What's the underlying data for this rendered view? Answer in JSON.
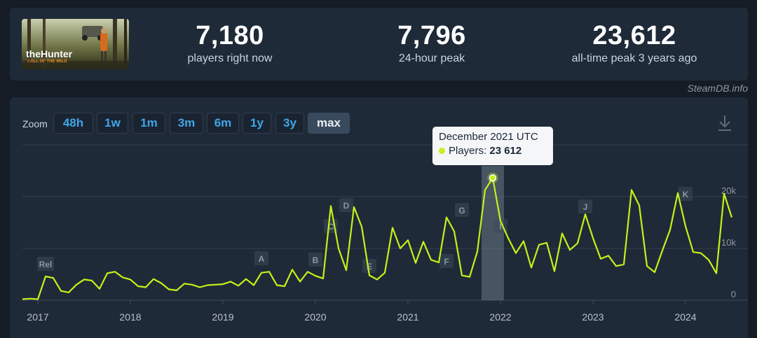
{
  "stats": [
    {
      "value": "7,180",
      "label": "players right now"
    },
    {
      "value": "7,796",
      "label": "24-hour peak"
    },
    {
      "value": "23,612",
      "label": "all-time peak 3 years ago"
    }
  ],
  "game": {
    "logo_line1": "theHunter",
    "logo_line2": "CALL OF THE WILD"
  },
  "credit": "SteamDB.info",
  "zoom": {
    "label": "Zoom",
    "buttons": [
      "48h",
      "1w",
      "1m",
      "3m",
      "6m",
      "1y",
      "3y",
      "max"
    ],
    "active": "max"
  },
  "tooltip": {
    "title": "December 2021 UTC",
    "series_label": "Players:",
    "value": "23 612"
  },
  "colors": {
    "line": "#c6f019",
    "accent": "#3fa6e8",
    "background": "#1f2a38"
  },
  "icons": {
    "download": "download-icon"
  },
  "chart_data": {
    "type": "line",
    "title": "",
    "xlabel": "",
    "ylabel": "",
    "series": [
      {
        "name": "Players",
        "color": "#c6f019"
      }
    ],
    "x_ticks": [
      "2017",
      "2018",
      "2019",
      "2020",
      "2021",
      "2022",
      "2023",
      "2024"
    ],
    "y_ticks": [
      {
        "value": 0,
        "label": "0"
      },
      {
        "value": 10000,
        "label": "10k"
      },
      {
        "value": 20000,
        "label": "20k"
      }
    ],
    "ylim": [
      0,
      30000
    ],
    "grid": true,
    "highlight": {
      "date": "2021-12",
      "value": 23612
    },
    "flags": [
      {
        "label": "Rel",
        "date": "2017-02"
      },
      {
        "label": "A",
        "date": "2019-06"
      },
      {
        "label": "B",
        "date": "2020-01"
      },
      {
        "label": "C",
        "date": "2020-03"
      },
      {
        "label": "D",
        "date": "2020-05"
      },
      {
        "label": "E",
        "date": "2020-08"
      },
      {
        "label": "F",
        "date": "2021-06"
      },
      {
        "label": "G",
        "date": "2021-08"
      },
      {
        "label": "I",
        "date": "2022-01"
      },
      {
        "label": "J",
        "date": "2022-12"
      },
      {
        "label": "K",
        "date": "2024-01"
      }
    ],
    "points": [
      [
        "2016-11",
        200
      ],
      [
        "2016-12",
        300
      ],
      [
        "2017-01",
        200
      ],
      [
        "2017-02",
        4600
      ],
      [
        "2017-03",
        4300
      ],
      [
        "2017-04",
        1800
      ],
      [
        "2017-05",
        1500
      ],
      [
        "2017-06",
        3000
      ],
      [
        "2017-07",
        4000
      ],
      [
        "2017-08",
        3800
      ],
      [
        "2017-09",
        2200
      ],
      [
        "2017-10",
        5200
      ],
      [
        "2017-11",
        5500
      ],
      [
        "2017-12",
        4400
      ],
      [
        "2018-01",
        4000
      ],
      [
        "2018-02",
        2700
      ],
      [
        "2018-03",
        2500
      ],
      [
        "2018-04",
        4100
      ],
      [
        "2018-05",
        3300
      ],
      [
        "2018-06",
        2100
      ],
      [
        "2018-07",
        1900
      ],
      [
        "2018-08",
        3200
      ],
      [
        "2018-09",
        3000
      ],
      [
        "2018-10",
        2500
      ],
      [
        "2018-11",
        2900
      ],
      [
        "2018-12",
        3000
      ],
      [
        "2019-01",
        3100
      ],
      [
        "2019-02",
        3600
      ],
      [
        "2019-03",
        2800
      ],
      [
        "2019-04",
        4100
      ],
      [
        "2019-05",
        2900
      ],
      [
        "2019-06",
        5300
      ],
      [
        "2019-07",
        5500
      ],
      [
        "2019-08",
        2900
      ],
      [
        "2019-09",
        2700
      ],
      [
        "2019-10",
        5900
      ],
      [
        "2019-11",
        3600
      ],
      [
        "2019-12",
        5500
      ],
      [
        "2020-01",
        4700
      ],
      [
        "2020-02",
        4200
      ],
      [
        "2020-03",
        18200
      ],
      [
        "2020-04",
        10000
      ],
      [
        "2020-05",
        5800
      ],
      [
        "2020-06",
        18000
      ],
      [
        "2020-07",
        14200
      ],
      [
        "2020-08",
        4800
      ],
      [
        "2020-09",
        4000
      ],
      [
        "2020-10",
        5300
      ],
      [
        "2020-11",
        14000
      ],
      [
        "2020-12",
        10000
      ],
      [
        "2021-01",
        11600
      ],
      [
        "2021-02",
        7200
      ],
      [
        "2021-03",
        11300
      ],
      [
        "2021-04",
        7800
      ],
      [
        "2021-05",
        7300
      ],
      [
        "2021-06",
        16000
      ],
      [
        "2021-07",
        13300
      ],
      [
        "2021-08",
        4800
      ],
      [
        "2021-09",
        4500
      ],
      [
        "2021-10",
        9400
      ],
      [
        "2021-11",
        21300
      ],
      [
        "2021-12",
        23612
      ],
      [
        "2022-01",
        15300
      ],
      [
        "2022-02",
        12000
      ],
      [
        "2022-03",
        9100
      ],
      [
        "2022-04",
        11400
      ],
      [
        "2022-05",
        6300
      ],
      [
        "2022-06",
        10700
      ],
      [
        "2022-07",
        11100
      ],
      [
        "2022-08",
        5600
      ],
      [
        "2022-09",
        12900
      ],
      [
        "2022-10",
        9700
      ],
      [
        "2022-11",
        11000
      ],
      [
        "2022-12",
        16600
      ],
      [
        "2023-01",
        12000
      ],
      [
        "2023-02",
        8000
      ],
      [
        "2023-03",
        8600
      ],
      [
        "2023-04",
        6600
      ],
      [
        "2023-05",
        6900
      ],
      [
        "2023-06",
        21300
      ],
      [
        "2023-07",
        18300
      ],
      [
        "2023-08",
        6600
      ],
      [
        "2023-09",
        5400
      ],
      [
        "2023-10",
        9600
      ],
      [
        "2023-11",
        13600
      ],
      [
        "2023-12",
        20700
      ],
      [
        "2024-01",
        14300
      ],
      [
        "2024-02",
        9300
      ],
      [
        "2024-03",
        9100
      ],
      [
        "2024-04",
        7800
      ],
      [
        "2024-05",
        5200
      ],
      [
        "2024-06",
        20600
      ],
      [
        "2024-07",
        16000
      ]
    ]
  }
}
